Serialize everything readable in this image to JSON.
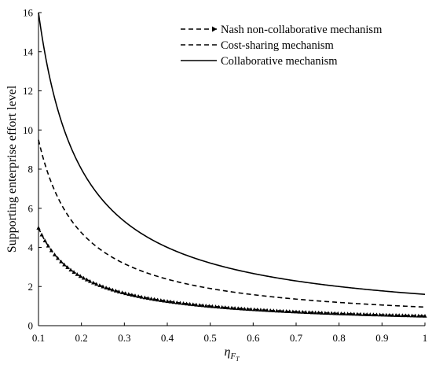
{
  "chart_data": {
    "type": "line",
    "title": "",
    "xlabel": "η",
    "xlabel_sub": "F",
    "xlabel_subsub": "T",
    "ylabel": "Supporting enterprise effort level",
    "xlim": [
      0.1,
      1
    ],
    "ylim": [
      0,
      16
    ],
    "xticks": [
      "0.1",
      "0.2",
      "0.3",
      "0.4",
      "0.5",
      "0.6",
      "0.7",
      "0.8",
      "0.9",
      "1"
    ],
    "yticks": [
      "0",
      "2",
      "4",
      "6",
      "8",
      "10",
      "12",
      "14",
      "16"
    ],
    "grid": false,
    "legend_position": "top-right",
    "x": [
      0.1,
      0.15,
      0.2,
      0.25,
      0.3,
      0.35,
      0.4,
      0.45,
      0.5,
      0.55,
      0.6,
      0.65,
      0.7,
      0.75,
      0.8,
      0.85,
      0.9,
      0.95,
      1.0
    ],
    "series": [
      {
        "name": "Nash non-collaborative mechanism",
        "style": "dashed-triangle",
        "values": [
          5.0,
          3.33,
          2.5,
          2.0,
          1.67,
          1.43,
          1.25,
          1.11,
          1.0,
          0.91,
          0.83,
          0.77,
          0.71,
          0.67,
          0.63,
          0.59,
          0.56,
          0.53,
          0.5
        ]
      },
      {
        "name": "Cost-sharing mechanism",
        "style": "dashed",
        "values": [
          9.5,
          6.33,
          4.75,
          3.8,
          3.17,
          2.71,
          2.38,
          2.11,
          1.9,
          1.73,
          1.58,
          1.46,
          1.36,
          1.27,
          1.19,
          1.12,
          1.06,
          1.0,
          0.95
        ]
      },
      {
        "name": "Collaborative mechanism",
        "style": "solid",
        "values": [
          16.0,
          10.67,
          8.0,
          6.4,
          5.33,
          4.57,
          4.0,
          3.56,
          3.2,
          2.91,
          2.67,
          2.46,
          2.29,
          2.13,
          2.0,
          1.88,
          1.78,
          1.68,
          1.6
        ]
      }
    ]
  }
}
